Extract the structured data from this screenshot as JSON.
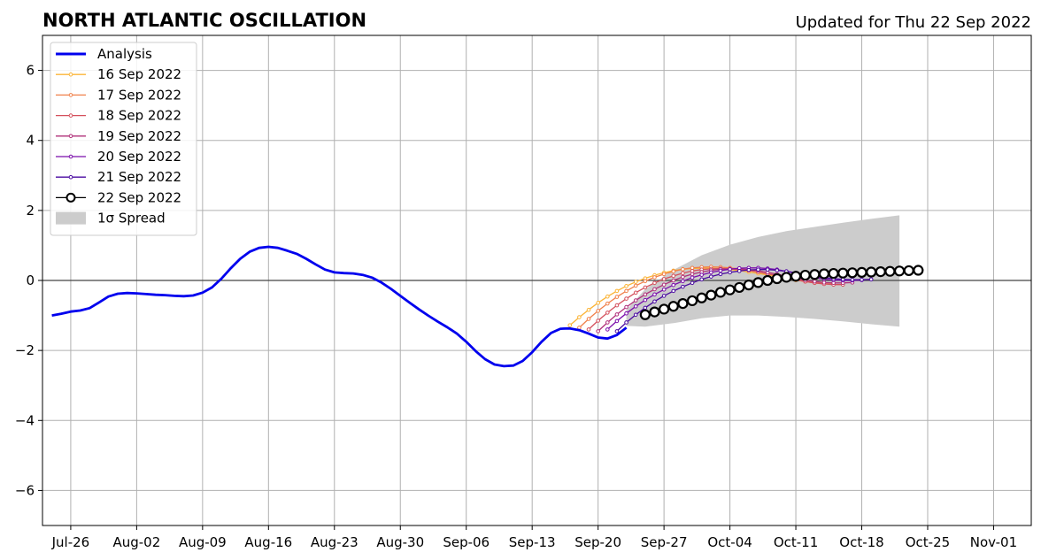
{
  "chart_data": {
    "type": "line",
    "title": "NORTH ATLANTIC OSCILLATION",
    "subtitle": "Updated for Thu 22 Sep 2022",
    "xlabel": "",
    "ylabel": "",
    "x_range": [
      "2022-07-23",
      "2022-11-05"
    ],
    "ylim": [
      -7,
      7
    ],
    "grid": true,
    "legend_position": "top-left",
    "x_tick_labels": [
      "Jul-26",
      "Aug-02",
      "Aug-09",
      "Aug-16",
      "Aug-23",
      "Aug-30",
      "Sep-06",
      "Sep-13",
      "Sep-20",
      "Sep-27",
      "Oct-04",
      "Oct-11",
      "Oct-18",
      "Oct-25",
      "Nov-01"
    ],
    "y_ticks": [
      -6,
      -4,
      -2,
      0,
      2,
      4,
      6
    ],
    "y_tick_labels": [
      "−6",
      "−4",
      "−2",
      "0",
      "2",
      "4",
      "6"
    ],
    "analysis": {
      "name": "Analysis",
      "color": "#0000ee",
      "start_date": "2022-07-24",
      "values": [
        -1.0,
        -0.95,
        -0.89,
        -0.86,
        -0.79,
        -0.63,
        -0.46,
        -0.38,
        -0.36,
        -0.37,
        -0.39,
        -0.41,
        -0.42,
        -0.44,
        -0.45,
        -0.43,
        -0.35,
        -0.2,
        0.05,
        0.35,
        0.62,
        0.82,
        0.93,
        0.96,
        0.93,
        0.85,
        0.76,
        0.62,
        0.46,
        0.31,
        0.23,
        0.21,
        0.2,
        0.16,
        0.08,
        -0.06,
        -0.24,
        -0.44,
        -0.64,
        -0.83,
        -1.01,
        -1.18,
        -1.34,
        -1.52,
        -1.75,
        -2.02,
        -2.25,
        -2.4,
        -2.45,
        -2.43,
        -2.3,
        -2.05,
        -1.75,
        -1.5,
        -1.38,
        -1.37,
        -1.42,
        -1.52,
        -1.63,
        -1.66,
        -1.56,
        -1.35
      ]
    },
    "spread": {
      "name": "1σ Spread",
      "color": "#cccccc",
      "dates": [
        "2022-09-23",
        "2022-09-25",
        "2022-09-28",
        "2022-10-01",
        "2022-10-04",
        "2022-10-07",
        "2022-10-10",
        "2022-10-13",
        "2022-10-16",
        "2022-10-19",
        "2022-10-22"
      ],
      "upper": [
        -0.85,
        -0.25,
        0.3,
        0.72,
        1.02,
        1.24,
        1.41,
        1.53,
        1.65,
        1.76,
        1.86
      ],
      "lower": [
        -1.3,
        -1.32,
        -1.22,
        -1.08,
        -1.0,
        -1.0,
        -1.04,
        -1.1,
        -1.17,
        -1.25,
        -1.32
      ]
    },
    "series": [
      {
        "name": "16 Sep 2022",
        "color": "#fbb437",
        "start_date": "2022-09-17",
        "values": [
          -1.28,
          -1.05,
          -0.84,
          -0.64,
          -0.46,
          -0.3,
          -0.16,
          -0.04,
          0.06,
          0.15,
          0.22,
          0.28,
          0.32,
          0.34,
          0.35,
          0.35,
          0.34,
          0.31,
          0.28,
          0.24,
          0.2,
          0.16,
          0.11,
          0.06,
          0.01,
          -0.03,
          -0.06,
          -0.08
        ]
      },
      {
        "name": "17 Sep 2022",
        "color": "#f0804a",
        "start_date": "2022-09-18",
        "values": [
          -1.35,
          -1.1,
          -0.87,
          -0.66,
          -0.47,
          -0.3,
          -0.15,
          -0.02,
          0.09,
          0.18,
          0.26,
          0.32,
          0.36,
          0.38,
          0.39,
          0.38,
          0.36,
          0.33,
          0.29,
          0.24,
          0.19,
          0.13,
          0.07,
          0.02,
          -0.03,
          -0.07,
          -0.09,
          -0.1
        ]
      },
      {
        "name": "18 Sep 2022",
        "color": "#d4505c",
        "start_date": "2022-09-19",
        "values": [
          -1.4,
          -1.15,
          -0.92,
          -0.71,
          -0.52,
          -0.35,
          -0.2,
          -0.07,
          0.04,
          0.13,
          0.21,
          0.27,
          0.31,
          0.33,
          0.34,
          0.33,
          0.31,
          0.28,
          0.24,
          0.19,
          0.14,
          0.08,
          0.02,
          -0.03,
          -0.07,
          -0.1,
          -0.12,
          -0.12
        ]
      },
      {
        "name": "19 Sep 2022",
        "color": "#b0307a",
        "start_date": "2022-09-20",
        "values": [
          -1.45,
          -1.2,
          -0.97,
          -0.76,
          -0.57,
          -0.4,
          -0.25,
          -0.12,
          0.0,
          0.1,
          0.18,
          0.24,
          0.29,
          0.32,
          0.33,
          0.33,
          0.31,
          0.28,
          0.23,
          0.18,
          0.12,
          0.06,
          0.01,
          -0.03,
          -0.06,
          -0.07,
          -0.07,
          -0.06
        ]
      },
      {
        "name": "20 Sep 2022",
        "color": "#7a0eab",
        "start_date": "2022-09-21",
        "values": [
          -1.4,
          -1.16,
          -0.94,
          -0.74,
          -0.56,
          -0.4,
          -0.26,
          -0.13,
          -0.02,
          0.08,
          0.16,
          0.23,
          0.28,
          0.32,
          0.35,
          0.36,
          0.36,
          0.34,
          0.31,
          0.26,
          0.2,
          0.14,
          0.08,
          0.04,
          0.01,
          0.0,
          0.0,
          0.01
        ]
      },
      {
        "name": "21 Sep 2022",
        "color": "#4a0aa0",
        "start_date": "2022-09-22",
        "values": [
          -1.45,
          -1.2,
          -0.98,
          -0.78,
          -0.6,
          -0.44,
          -0.3,
          -0.18,
          -0.07,
          0.03,
          0.11,
          0.18,
          0.23,
          0.27,
          0.3,
          0.31,
          0.31,
          0.29,
          0.26,
          0.22,
          0.17,
          0.12,
          0.08,
          0.05,
          0.03,
          0.02,
          0.02,
          0.03
        ]
      },
      {
        "name": "22 Sep 2022",
        "color": "#000000",
        "start_date": "2022-09-25",
        "values": [
          -0.98,
          -0.9,
          -0.82,
          -0.74,
          -0.66,
          -0.58,
          -0.5,
          -0.42,
          -0.34,
          -0.27,
          -0.2,
          -0.13,
          -0.06,
          0.0,
          0.05,
          0.09,
          0.12,
          0.15,
          0.17,
          0.19,
          0.2,
          0.21,
          0.22,
          0.23,
          0.24,
          0.25,
          0.26,
          0.27,
          0.28,
          0.29
        ]
      }
    ]
  }
}
